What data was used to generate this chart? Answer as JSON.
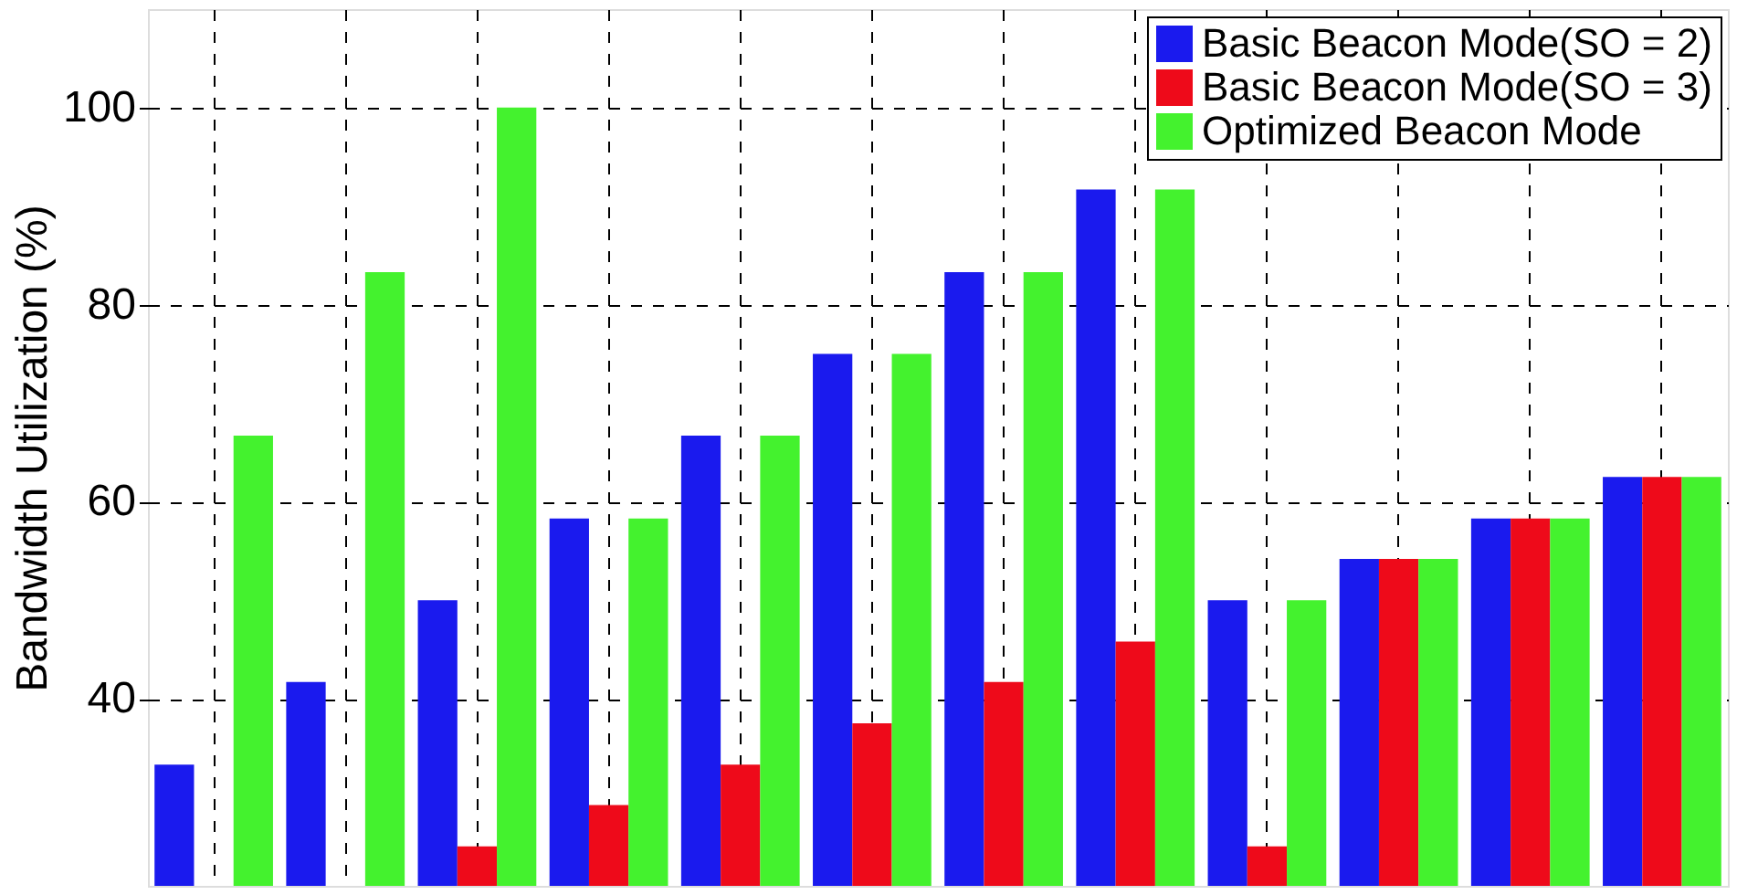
{
  "chart_data": {
    "type": "bar",
    "ylabel": "Bandwidth Utilization (%)",
    "categories": [
      null,
      null,
      null,
      null,
      null,
      null,
      null,
      null,
      null,
      null,
      null,
      null
    ],
    "series": [
      {
        "name": "Basic Beacon Mode(SO = 2)",
        "color": "#1a1aee",
        "values": [
          33.3,
          41.7,
          50,
          58.3,
          66.7,
          75,
          83.3,
          91.7,
          50,
          54.2,
          58.3,
          62.5
        ]
      },
      {
        "name": "Basic Beacon Mode(SO = 3)",
        "color": "#ee0a1a",
        "values": [
          null,
          null,
          25,
          29.2,
          33.3,
          37.5,
          41.7,
          45.8,
          25,
          54.2,
          58.3,
          62.5
        ]
      },
      {
        "name": "Optimized Beacon Mode",
        "color": "#44f22e",
        "values": [
          66.7,
          83.3,
          100,
          58.3,
          66.7,
          75,
          83.3,
          91.7,
          50,
          54.2,
          58.3,
          62.5
        ]
      }
    ],
    "ylim": [
      21,
      110
    ],
    "yticks": [
      40,
      60,
      80,
      100
    ],
    "grid": true,
    "legend": "top right",
    "tick_labels": "y"
  }
}
